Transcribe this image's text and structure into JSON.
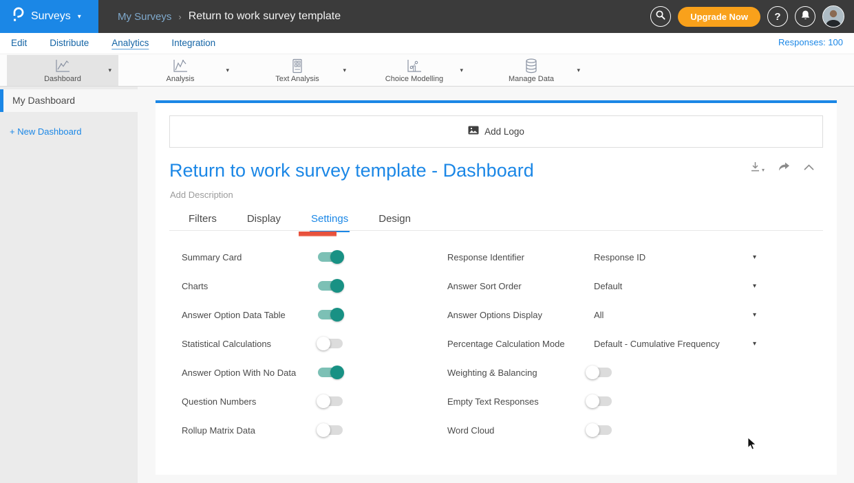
{
  "header": {
    "brand": "Surveys",
    "breadcrumb": {
      "section": "My Surveys",
      "separator": "›",
      "page": "Return to work survey template"
    },
    "upgrade_label": "Upgrade Now",
    "help_glyph": "?"
  },
  "nav": {
    "items": [
      "Edit",
      "Distribute",
      "Analytics",
      "Integration"
    ],
    "active": "Analytics",
    "responses": "Responses: 100"
  },
  "toolbar": {
    "items": [
      {
        "label": "Dashboard",
        "icon": "dashboard-chart-icon",
        "active": true
      },
      {
        "label": "Analysis",
        "icon": "analysis-chart-icon",
        "active": false
      },
      {
        "label": "Text Analysis",
        "icon": "text-analysis-icon",
        "active": false
      },
      {
        "label": "Choice Modelling",
        "icon": "choice-modelling-icon",
        "active": false
      },
      {
        "label": "Manage Data",
        "icon": "manage-data-icon",
        "active": false
      }
    ]
  },
  "sidebar": {
    "items": [
      {
        "label": "My Dashboard",
        "active": true
      }
    ],
    "new_dashboard_label": "+ New Dashboard"
  },
  "content": {
    "add_logo_label": "Add Logo",
    "title": "Return to work survey template - Dashboard",
    "description_placeholder": "Add Description",
    "tabs": [
      {
        "label": "Filters",
        "active": false
      },
      {
        "label": "Display",
        "active": false
      },
      {
        "label": "Settings",
        "active": true,
        "annotated": true
      },
      {
        "label": "Design",
        "active": false
      }
    ],
    "settings_left": [
      {
        "label": "Summary Card",
        "on": true
      },
      {
        "label": "Charts",
        "on": true
      },
      {
        "label": "Answer Option Data Table",
        "on": true
      },
      {
        "label": "Statistical Calculations",
        "on": false
      },
      {
        "label": "Answer Option With No Data",
        "on": true
      },
      {
        "label": "Question Numbers",
        "on": false
      },
      {
        "label": "Rollup Matrix Data",
        "on": false
      }
    ],
    "settings_right_selects": [
      {
        "label": "Response Identifier",
        "value": "Response ID"
      },
      {
        "label": "Answer Sort Order",
        "value": "Default"
      },
      {
        "label": "Answer Options Display",
        "value": "All"
      },
      {
        "label": "Percentage Calculation Mode",
        "value": "Default - Cumulative Frequency"
      }
    ],
    "settings_right_toggles": [
      {
        "label": "Weighting & Balancing",
        "on": false
      },
      {
        "label": "Empty Text Responses",
        "on": false
      },
      {
        "label": "Word Cloud",
        "on": false
      }
    ]
  },
  "colors": {
    "accent_blue": "#1b87e6",
    "nav_blue": "#1464a5",
    "header_dark": "#3b3b3b",
    "upgrade_orange": "#f9a11b",
    "toggle_on_knob": "#189184",
    "toggle_on_track": "#7cc0b5",
    "toggle_off_track": "#dcdcdc",
    "annotation_red": "#e8513c"
  }
}
